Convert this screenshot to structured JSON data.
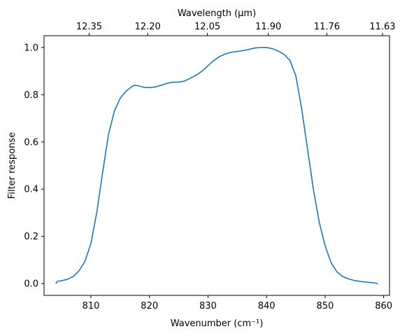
{
  "chart_data": {
    "type": "line",
    "xlabel": "Wavenumber (cm⁻¹)",
    "ylabel": "Filter response",
    "secondary_xlabel": "Wavelength (μm)",
    "xlim": [
      802,
      861
    ],
    "ylim": [
      -0.05,
      1.05
    ],
    "xticks": [
      810,
      820,
      830,
      840,
      850,
      860
    ],
    "yticks": [
      0.0,
      0.2,
      0.4,
      0.6,
      0.8,
      1.0
    ],
    "ytick_labels": [
      "0.0",
      "0.2",
      "0.4",
      "0.6",
      "0.8",
      "1.0"
    ],
    "secondary_ticks": [
      {
        "label": "12.35",
        "wavenumber": 809.7
      },
      {
        "label": "12.20",
        "wavenumber": 819.7
      },
      {
        "label": "12.05",
        "wavenumber": 829.9
      },
      {
        "label": "11.90",
        "wavenumber": 840.3
      },
      {
        "label": "11.76",
        "wavenumber": 850.3
      },
      {
        "label": "11.63",
        "wavenumber": 859.8
      }
    ],
    "grid": false,
    "series": [
      {
        "color": "#1f77b4",
        "x": [
          804.0,
          804.3,
          805.0,
          806.0,
          807.0,
          808.0,
          809.0,
          810.0,
          811.0,
          812.0,
          813.0,
          814.0,
          815.0,
          816.0,
          817.0,
          817.5,
          818.0,
          819.0,
          820.0,
          821.0,
          822.0,
          823.0,
          824.0,
          825.0,
          826.0,
          827.0,
          828.0,
          829.0,
          830.0,
          831.0,
          832.0,
          833.0,
          834.0,
          835.0,
          836.0,
          837.0,
          838.0,
          839.0,
          840.0,
          841.0,
          842.0,
          843.0,
          844.0,
          845.0,
          846.0,
          847.0,
          848.0,
          849.0,
          850.0,
          851.0,
          852.0,
          853.0,
          854.0,
          855.0,
          856.0,
          857.0,
          858.0,
          858.6,
          859.0
        ],
        "y": [
          0.0,
          0.01,
          0.012,
          0.018,
          0.03,
          0.055,
          0.095,
          0.17,
          0.3,
          0.47,
          0.63,
          0.73,
          0.785,
          0.815,
          0.835,
          0.84,
          0.838,
          0.832,
          0.83,
          0.833,
          0.84,
          0.848,
          0.853,
          0.853,
          0.858,
          0.87,
          0.883,
          0.9,
          0.923,
          0.945,
          0.962,
          0.973,
          0.98,
          0.983,
          0.987,
          0.992,
          0.998,
          1.0,
          1.0,
          0.995,
          0.985,
          0.97,
          0.945,
          0.88,
          0.74,
          0.57,
          0.4,
          0.26,
          0.16,
          0.09,
          0.05,
          0.03,
          0.02,
          0.013,
          0.009,
          0.006,
          0.004,
          0.002,
          0.0
        ]
      }
    ]
  }
}
